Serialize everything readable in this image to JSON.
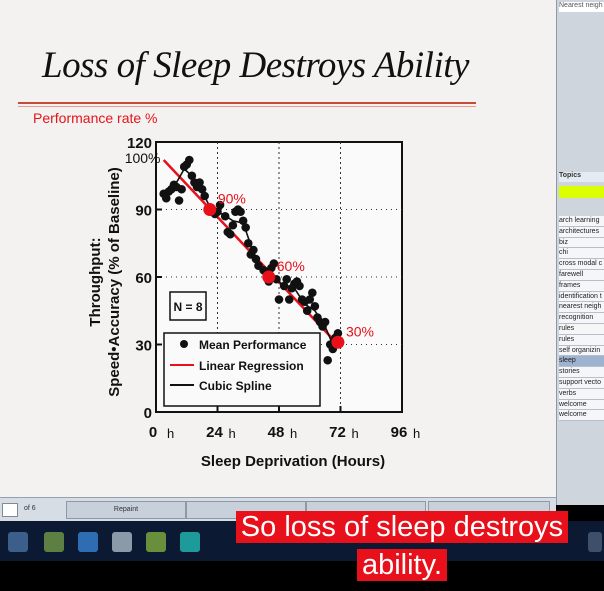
{
  "slide": {
    "title": "Loss of Sleep Destroys Ability",
    "performance_label": "Performance rate %"
  },
  "chart_data": {
    "type": "scatter",
    "title": "Loss of Sleep Destroys Ability",
    "xlabel": "Sleep Deprivation (Hours)",
    "ylabel_line1": "Throughput:",
    "ylabel_line2": "Speed•Accuracy (% of Baseline)",
    "x_ticks": [
      "0",
      "24",
      "48",
      "72",
      "96"
    ],
    "x_tick_suffix": "h",
    "y_ticks": [
      "0",
      "30",
      "60",
      "90",
      "120"
    ],
    "xlim": [
      0,
      96
    ],
    "ylim": [
      0,
      120
    ],
    "grid": "dashed vertical at 24, 48, 72; horizontal at 30, 60, 90",
    "legend_position": "bottom-left",
    "n_box": "N = 8",
    "series": [
      {
        "name": "Mean Performance",
        "points": [
          [
            3,
            97
          ],
          [
            4,
            95
          ],
          [
            5,
            98
          ],
          [
            6,
            99
          ],
          [
            7,
            101
          ],
          [
            8,
            100
          ],
          [
            9,
            94
          ],
          [
            10,
            99
          ],
          [
            11,
            109
          ],
          [
            12,
            110
          ],
          [
            13,
            112
          ],
          [
            14,
            105
          ],
          [
            15,
            102
          ],
          [
            16,
            100
          ],
          [
            17,
            102
          ],
          [
            18,
            99
          ],
          [
            19,
            96
          ],
          [
            21,
            90
          ],
          [
            22,
            89
          ],
          [
            23,
            88
          ],
          [
            24,
            89
          ],
          [
            25,
            92
          ],
          [
            27,
            87
          ],
          [
            28,
            80
          ],
          [
            29,
            79
          ],
          [
            30,
            83
          ],
          [
            31,
            89
          ],
          [
            32,
            90
          ],
          [
            33,
            89
          ],
          [
            34,
            85
          ],
          [
            35,
            82
          ],
          [
            36,
            75
          ],
          [
            37,
            70
          ],
          [
            38,
            72
          ],
          [
            39,
            68
          ],
          [
            40,
            65
          ],
          [
            42,
            63
          ],
          [
            43,
            62
          ],
          [
            44,
            58
          ],
          [
            45,
            64
          ],
          [
            46,
            66
          ],
          [
            47,
            59
          ],
          [
            48,
            50
          ],
          [
            50,
            56
          ],
          [
            51,
            59
          ],
          [
            52,
            50
          ],
          [
            53,
            55
          ],
          [
            54,
            57
          ],
          [
            55,
            58
          ],
          [
            56,
            56
          ],
          [
            57,
            50
          ],
          [
            58,
            49
          ],
          [
            59,
            45
          ],
          [
            60,
            50
          ],
          [
            61,
            53
          ],
          [
            62,
            47
          ],
          [
            63,
            42
          ],
          [
            64,
            40
          ],
          [
            65,
            38
          ],
          [
            66,
            40
          ],
          [
            67,
            23
          ],
          [
            68,
            30
          ],
          [
            69,
            28
          ],
          [
            70,
            33
          ],
          [
            71,
            35
          ]
        ]
      },
      {
        "name": "Linear Regression",
        "color": "#e8101a",
        "line": [
          [
            3,
            112
          ],
          [
            71,
            30
          ]
        ]
      },
      {
        "name": "Cubic Spline",
        "color": "#111111",
        "points": [
          [
            3,
            97
          ],
          [
            7,
            100
          ],
          [
            11,
            108
          ],
          [
            14,
            105
          ],
          [
            18,
            98
          ],
          [
            22,
            89
          ],
          [
            26,
            88
          ],
          [
            30,
            85
          ],
          [
            34,
            84
          ],
          [
            38,
            71
          ],
          [
            42,
            63
          ],
          [
            46,
            60
          ],
          [
            50,
            56
          ],
          [
            54,
            55
          ],
          [
            58,
            48
          ],
          [
            62,
            45
          ],
          [
            66,
            38
          ],
          [
            69,
            30
          ],
          [
            71,
            32
          ]
        ]
      }
    ],
    "annotations": [
      {
        "label": "100%",
        "x": 3,
        "y": 112,
        "color": "#111111",
        "marker": false
      },
      {
        "label": "90%",
        "x": 21,
        "y": 90,
        "color": "#e8101a",
        "marker": true
      },
      {
        "label": "60%",
        "x": 44,
        "y": 60,
        "color": "#e8101a",
        "marker": true
      },
      {
        "label": "30%",
        "x": 71,
        "y": 31,
        "color": "#e8101a",
        "marker": true
      }
    ]
  },
  "sidebar": {
    "nearest_label": "Nearest neigh",
    "topics_label": "Topics",
    "items": [
      {
        "label": "arch learning",
        "selected": false
      },
      {
        "label": "architectures",
        "selected": false
      },
      {
        "label": "biz",
        "selected": false
      },
      {
        "label": "chi",
        "selected": false
      },
      {
        "label": "cross modal c",
        "selected": false
      },
      {
        "label": "farewell",
        "selected": false
      },
      {
        "label": "frames",
        "selected": false
      },
      {
        "label": "identification t",
        "selected": false
      },
      {
        "label": "nearest neigh",
        "selected": false
      },
      {
        "label": "recognition",
        "selected": false
      },
      {
        "label": "rules",
        "selected": false
      },
      {
        "label": "rules",
        "selected": false
      },
      {
        "label": "self organizin",
        "selected": false
      },
      {
        "label": "sleep",
        "selected": true
      },
      {
        "label": "stories",
        "selected": false
      },
      {
        "label": "support vecto",
        "selected": false
      },
      {
        "label": "verbs",
        "selected": false
      },
      {
        "label": "welcome",
        "selected": false
      },
      {
        "label": "welcome",
        "selected": false
      }
    ]
  },
  "bottom_bar": {
    "page_of": "of 6",
    "repaint_label": "Repaint"
  },
  "caption": {
    "line1": "So loss of sleep destroys",
    "line2": "ability."
  },
  "colors": {
    "accent_red": "#e8101a",
    "taskbar": "#0b1932",
    "slide_bg": "#f3f2f0"
  }
}
